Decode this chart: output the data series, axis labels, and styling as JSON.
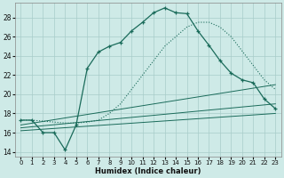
{
  "xlabel": "Humidex (Indice chaleur)",
  "bg_color": "#ceeae7",
  "grid_color": "#a8ccc9",
  "line_color": "#1a6b5a",
  "xlim": [
    -0.5,
    23.5
  ],
  "ylim": [
    13.5,
    29.5
  ],
  "xticks": [
    0,
    1,
    2,
    3,
    4,
    5,
    6,
    7,
    8,
    9,
    10,
    11,
    12,
    13,
    14,
    15,
    16,
    17,
    18,
    19,
    20,
    21,
    22,
    23
  ],
  "yticks": [
    14,
    16,
    18,
    20,
    22,
    24,
    26,
    28
  ],
  "main_y": [
    17.3,
    17.3,
    16.0,
    16.0,
    14.2,
    16.8,
    22.7,
    24.4,
    25.0,
    25.4,
    26.6,
    27.5,
    28.5,
    29.0,
    28.5,
    28.4,
    26.6,
    25.1,
    23.5,
    22.2,
    21.5,
    21.2,
    19.5,
    18.5
  ],
  "dotted_y": [
    17.3,
    17.3,
    17.2,
    17.1,
    17.0,
    17.0,
    17.1,
    17.3,
    18.0,
    19.0,
    20.5,
    22.0,
    23.5,
    25.0,
    26.0,
    27.0,
    27.5,
    27.5,
    27.0,
    26.0,
    24.5,
    23.0,
    21.5,
    20.5
  ],
  "lin1_y0": 16.8,
  "lin1_y1": 21.0,
  "lin2_y0": 16.5,
  "lin2_y1": 19.0,
  "lin3_y0": 16.2,
  "lin3_y1": 18.0
}
